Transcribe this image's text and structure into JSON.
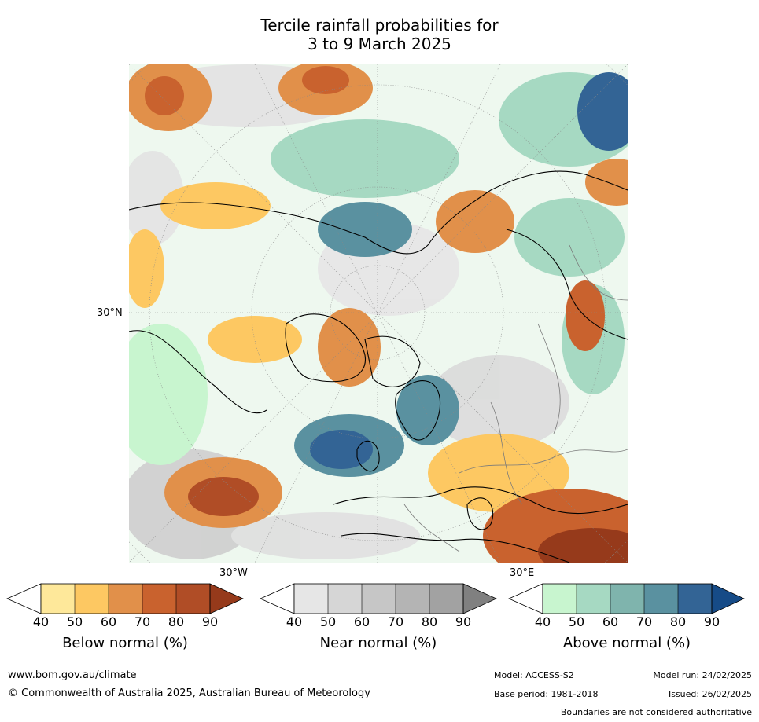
{
  "title": {
    "line1": "Tercile rainfall probabilities for",
    "line2": "3 to 9 March 2025"
  },
  "map": {
    "projection": "north-polar-stereographic",
    "labels": {
      "lat_30n": "30°N",
      "lon_30w": "30°W",
      "lon_30e": "30°E"
    },
    "colors": {
      "below": [
        "#ffffff",
        "#fee89a",
        "#fdc862",
        "#e1904a",
        "#c9622e",
        "#b04d26",
        "#963a1b"
      ],
      "near": [
        "#ffffff",
        "#e6e6e6",
        "#d6d6d6",
        "#c6c6c6",
        "#b4b4b4",
        "#a2a2a2",
        "#808080"
      ],
      "above": [
        "#ffffff",
        "#c8f5cf",
        "#a6d9c2",
        "#7fb4ad",
        "#5a91a0",
        "#336495",
        "#164b87"
      ]
    }
  },
  "colorbars": [
    {
      "id": "below",
      "label": "Below normal (%)",
      "ticks": [
        "40",
        "50",
        "60",
        "70",
        "80",
        "90"
      ]
    },
    {
      "id": "near",
      "label": "Near normal (%)",
      "ticks": [
        "40",
        "50",
        "60",
        "70",
        "80",
        "90"
      ]
    },
    {
      "id": "above",
      "label": "Above normal (%)",
      "ticks": [
        "40",
        "50",
        "60",
        "70",
        "80",
        "90"
      ]
    }
  ],
  "footer": {
    "url": "www.bom.gov.au/climate",
    "copyright": "© Commonwealth of Australia 2025, Australian Bureau of Meteorology",
    "model": "Model: ACCESS-S2",
    "base_period": "Base period: 1981-2018",
    "model_run": "Model run: 24/02/2025",
    "issued": "Issued: 26/02/2025",
    "disclaimer": "Boundaries are not considered authoritative"
  }
}
